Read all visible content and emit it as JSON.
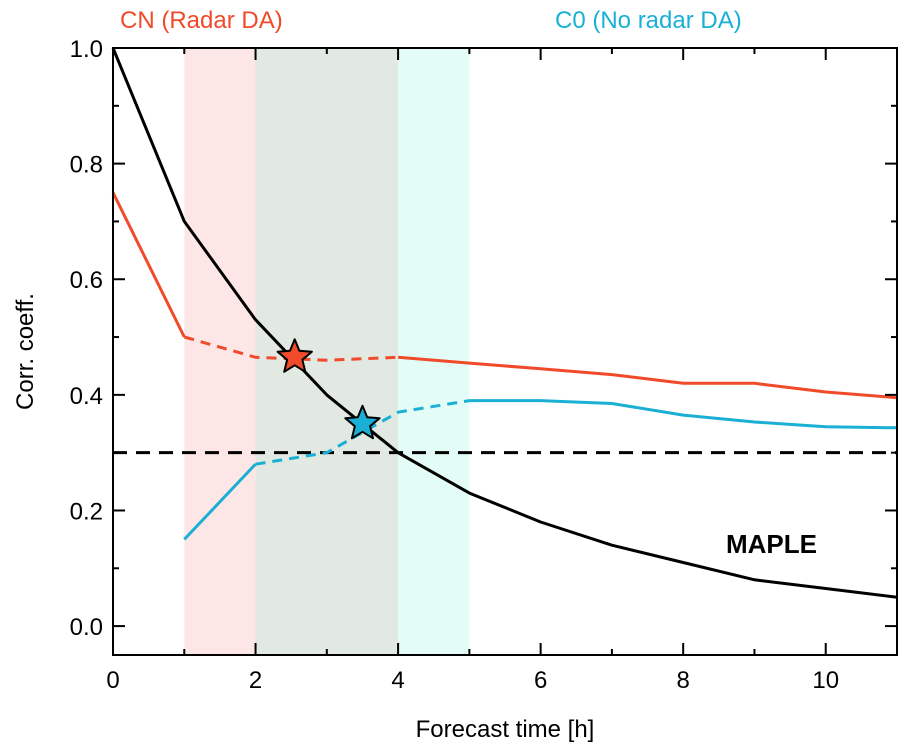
{
  "chart_data": {
    "type": "line",
    "title": "",
    "xlabel": "Forecast time [h]",
    "ylabel": "Corr. coeff.",
    "xlim": [
      0,
      11
    ],
    "ylim": [
      -0.05,
      1.0
    ],
    "xticks": [
      0,
      2,
      4,
      6,
      8,
      10
    ],
    "yticks": [
      0.0,
      0.2,
      0.4,
      0.6,
      0.8,
      1.0
    ],
    "xtick_labels": [
      "0",
      "2",
      "4",
      "6",
      "8",
      "10"
    ],
    "ytick_labels": [
      "0.0",
      "0.2",
      "0.4",
      "0.6",
      "0.8",
      "1.0"
    ],
    "grid": false,
    "legend": [
      {
        "label": "CN (Radar DA)",
        "color": "#f04a2a",
        "position": "top-left"
      },
      {
        "label": "C0 (No radar DA)",
        "color": "#1ab0d5",
        "position": "top-right"
      }
    ],
    "annotations": [
      {
        "text": "MAPLE",
        "x": 8.6,
        "y": 0.13
      }
    ],
    "shaded_regions": [
      {
        "x0": 1,
        "x1": 2,
        "color": "#fde7e6"
      },
      {
        "x0": 2,
        "x1": 4,
        "color": "#e2e8e2"
      },
      {
        "x0": 4,
        "x1": 5,
        "color": "#e3fcf6"
      }
    ],
    "threshold": {
      "y": 0.3,
      "style": "dashed",
      "color": "#000000"
    },
    "series": [
      {
        "name": "MAPLE",
        "color": "#000000",
        "x": [
          0,
          1,
          2,
          3,
          4,
          5,
          6,
          7,
          8,
          9,
          10,
          11
        ],
        "y": [
          1.0,
          0.7,
          0.53,
          0.4,
          0.3,
          0.23,
          0.18,
          0.14,
          0.11,
          0.08,
          0.065,
          0.05
        ]
      },
      {
        "name": "CN (Radar DA)",
        "color": "#f04a2a",
        "solid_segments": [
          {
            "x": [
              0,
              1
            ],
            "y": [
              0.75,
              0.5
            ]
          },
          {
            "x": [
              4,
              5,
              6,
              7,
              8,
              9,
              10,
              11
            ],
            "y": [
              0.465,
              0.455,
              0.445,
              0.435,
              0.42,
              0.42,
              0.405,
              0.395
            ]
          }
        ],
        "dashed_segments": [
          {
            "x": [
              1,
              2,
              3,
              4
            ],
            "y": [
              0.5,
              0.465,
              0.46,
              0.465
            ]
          }
        ],
        "marker": {
          "shape": "star",
          "x": 2.55,
          "y": 0.465
        }
      },
      {
        "name": "C0 (No radar DA)",
        "color": "#1ab0d5",
        "solid_segments": [
          {
            "x": [
              1,
              2
            ],
            "y": [
              0.15,
              0.28
            ]
          },
          {
            "x": [
              5,
              6,
              7,
              8,
              9,
              10,
              11
            ],
            "y": [
              0.39,
              0.39,
              0.385,
              0.365,
              0.353,
              0.345,
              0.343
            ]
          }
        ],
        "dashed_segments": [
          {
            "x": [
              2,
              3,
              4,
              5
            ],
            "y": [
              0.28,
              0.3,
              0.37,
              0.39
            ]
          }
        ],
        "marker": {
          "shape": "star",
          "x": 3.5,
          "y": 0.35
        }
      }
    ]
  }
}
